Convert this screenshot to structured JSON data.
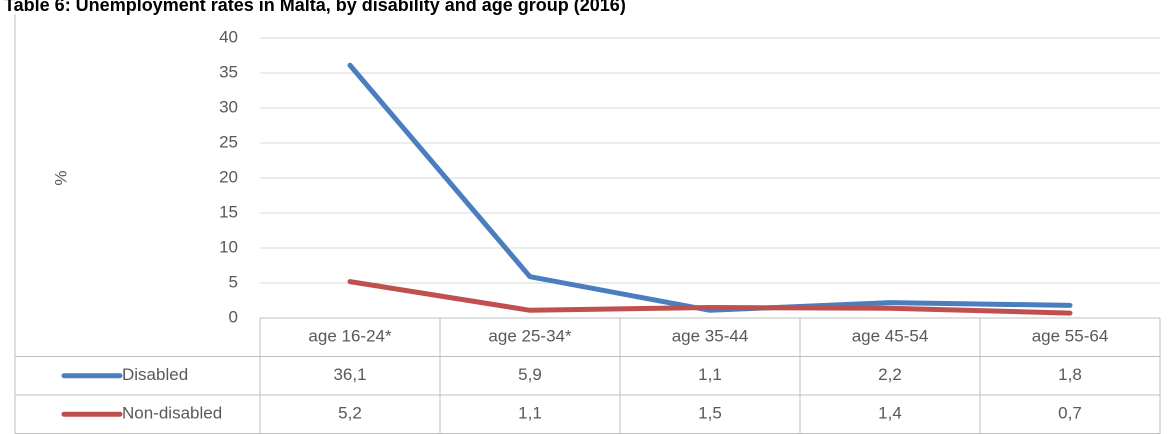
{
  "chart_data": {
    "type": "line",
    "title": "Table 6: Unemployment rates in Malta, by disability and age group (2016)",
    "y_label": "%",
    "categories": [
      "age 16-24*",
      "age 25-34*",
      "age 35-44",
      "age 45-54",
      "age 55-64"
    ],
    "series": [
      {
        "name": "Disabled",
        "color": "#4a7ebf",
        "values": [
          36.1,
          5.9,
          1.1,
          2.2,
          1.8
        ],
        "value_labels": [
          "36,1",
          "5,9",
          "1,1",
          "2,2",
          "1,8"
        ]
      },
      {
        "name": "Non-disabled",
        "color": "#c0504d",
        "values": [
          5.2,
          1.1,
          1.5,
          1.4,
          0.7
        ],
        "value_labels": [
          "5,2",
          "1,1",
          "1,5",
          "1,4",
          "0,7"
        ]
      }
    ],
    "ylim": [
      0,
      40
    ],
    "yticks": [
      0,
      5,
      10,
      15,
      20,
      25,
      30,
      35,
      40
    ],
    "grid": true,
    "data_table": true
  }
}
